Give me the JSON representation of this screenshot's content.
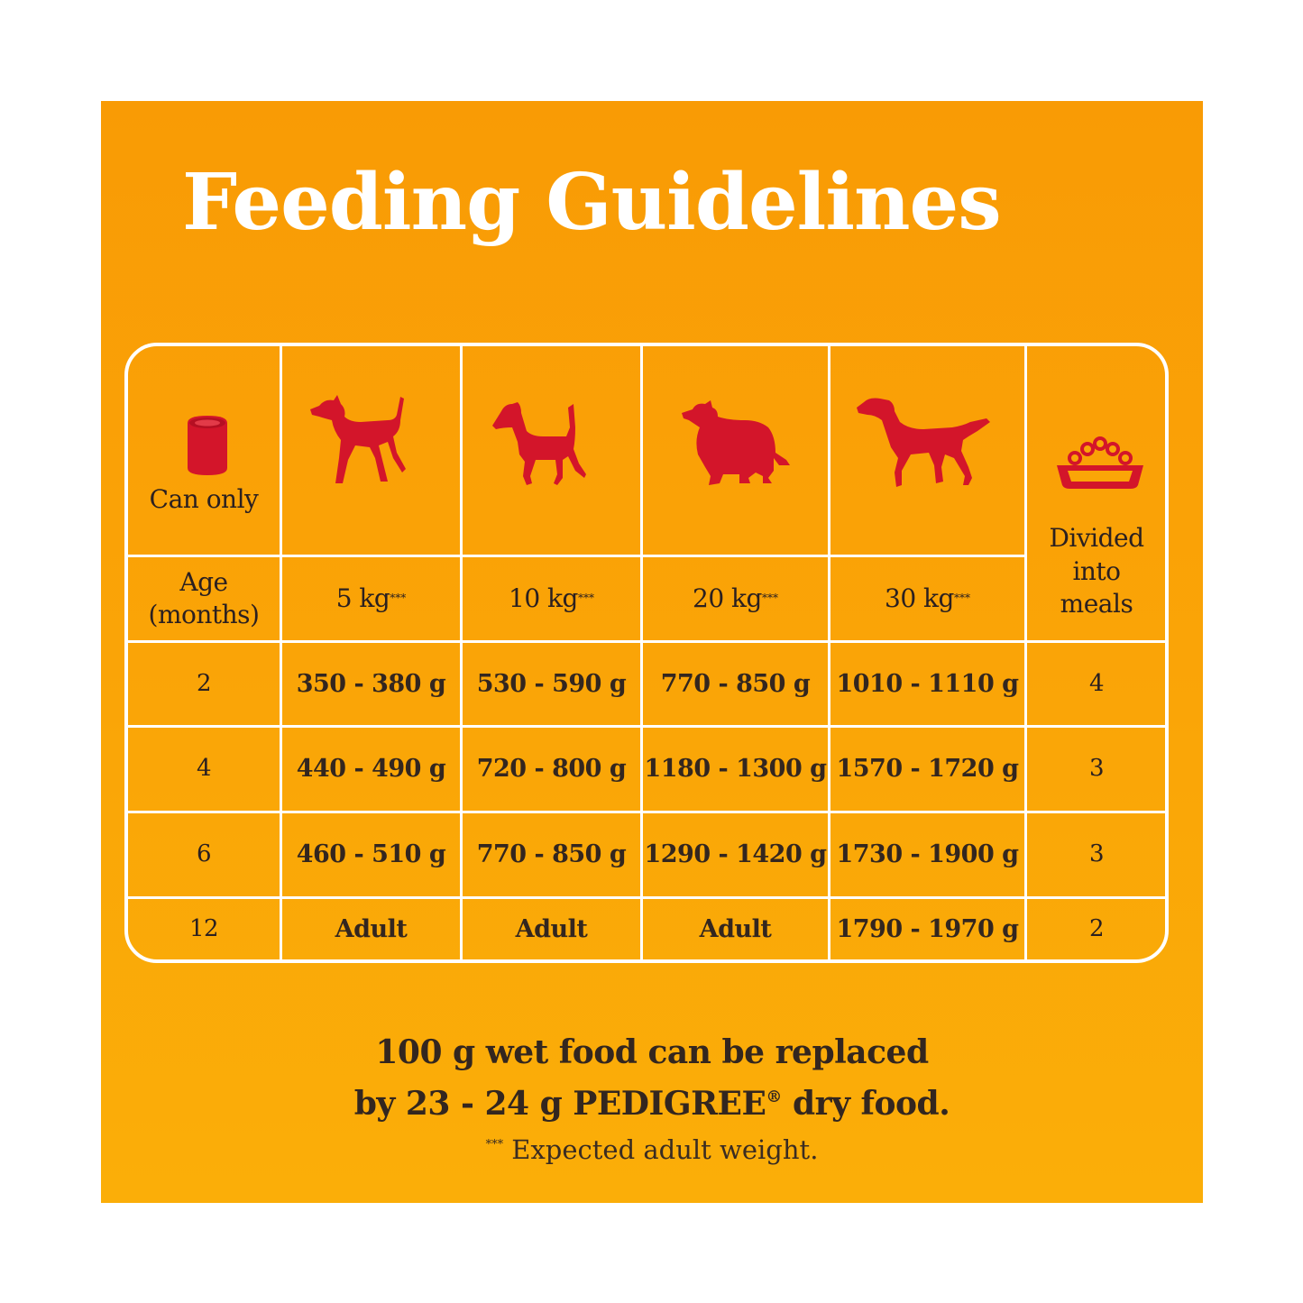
{
  "title": "Feeding Guidelines",
  "colors": {
    "background": "#faa507",
    "icon": "#d3152a",
    "lines": "#ffffff",
    "text": "#33261f"
  },
  "header": {
    "can_label": "Can only",
    "can_icon": "can-icon",
    "age_label": "Age (months)",
    "meals_label": "Divided into meals",
    "meals_icon": "bowl-icon",
    "weights": [
      {
        "label": "5 kg",
        "marker": "***",
        "icon": "small-dog-icon"
      },
      {
        "label": "10 kg",
        "marker": "***",
        "icon": "terrier-dog-icon"
      },
      {
        "label": "20 kg",
        "marker": "***",
        "icon": "collie-dog-icon"
      },
      {
        "label": "30 kg",
        "marker": "***",
        "icon": "setter-dog-icon"
      }
    ]
  },
  "rows": [
    {
      "age": "2",
      "values": [
        "350 - 380 g",
        "530 - 590 g",
        "770 - 850 g",
        "1010 - 1110 g"
      ],
      "meals": "4"
    },
    {
      "age": "4",
      "values": [
        "440 - 490 g",
        "720 - 800 g",
        "1180 - 1300 g",
        "1570 - 1720 g"
      ],
      "meals": "3"
    },
    {
      "age": "6",
      "values": [
        "460 - 510 g",
        "770 - 850 g",
        "1290 - 1420 g",
        "1730 - 1900 g"
      ],
      "meals": "3"
    },
    {
      "age": "12",
      "values": [
        "Adult",
        "Adult",
        "Adult",
        "1790 - 1970 g"
      ],
      "meals": "2"
    }
  ],
  "footer": {
    "line1": "100 g wet food can be replaced",
    "line2_a": "by 23 - 24 g PEDIGREE",
    "line2_reg": "®",
    "line2_b": " dry food.",
    "note_marker": "***",
    "note": " Expected adult weight."
  }
}
